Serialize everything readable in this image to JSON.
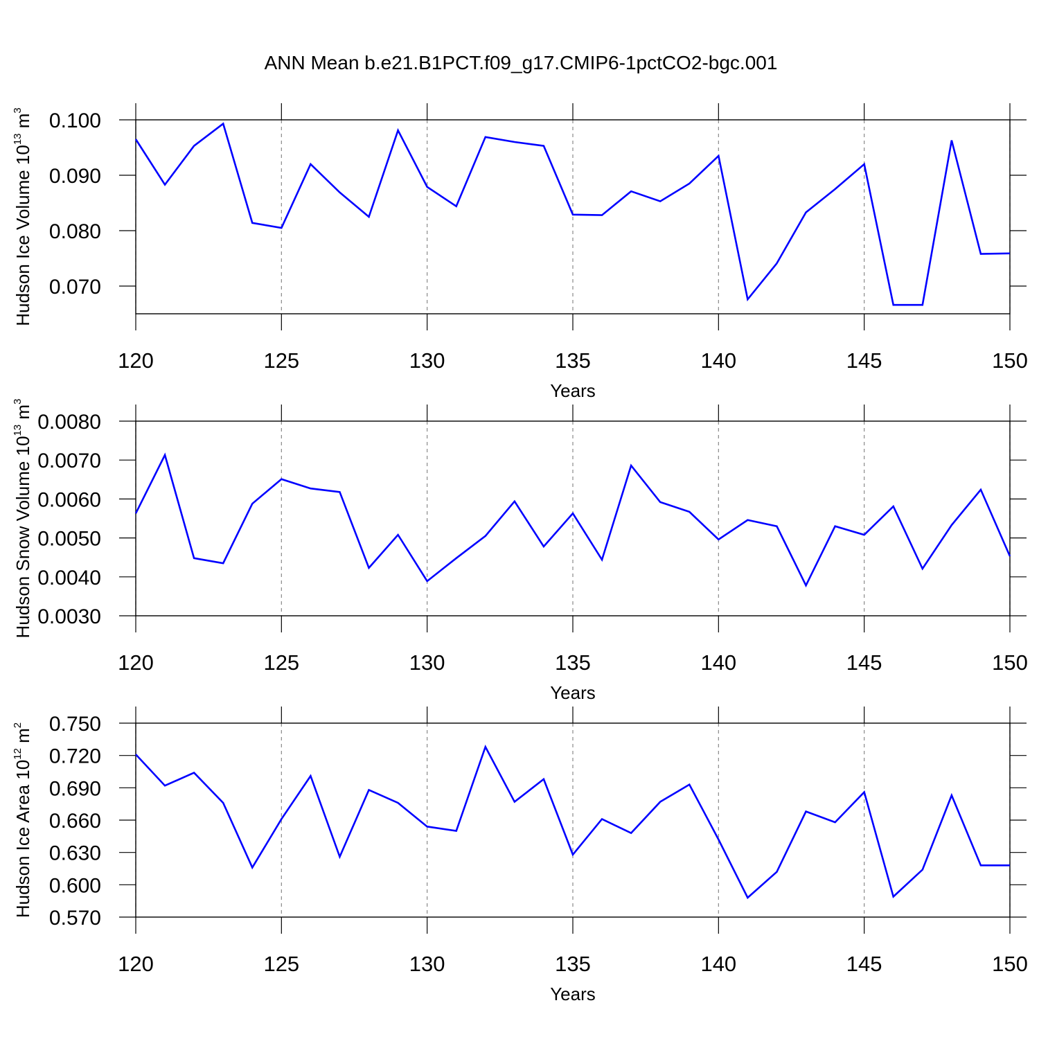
{
  "title": "ANN Mean b.e21.B1PCT.f09_g17.CMIP6-1pctCO2-bgc.001",
  "chart_data": [
    {
      "type": "line",
      "ylabel": [
        "Hudson Ice Volume 10",
        "13",
        " m",
        "3"
      ],
      "xlabel": "Years",
      "x": [
        120,
        121,
        122,
        123,
        124,
        125,
        126,
        127,
        128,
        129,
        130,
        131,
        132,
        133,
        134,
        135,
        136,
        137,
        138,
        139,
        140,
        141,
        142,
        143,
        144,
        145,
        146,
        147,
        148,
        149,
        150
      ],
      "series": [
        {
          "color": "#0000ff",
          "values": [
            0.0965,
            0.0883,
            0.0953,
            0.0993,
            0.0814,
            0.0805,
            0.092,
            0.0869,
            0.0825,
            0.0981,
            0.0879,
            0.0844,
            0.0969,
            0.096,
            0.0953,
            0.0829,
            0.0828,
            0.0871,
            0.0853,
            0.0885,
            0.0935,
            0.0676,
            0.0741,
            0.0833,
            0.0875,
            0.092,
            0.0666,
            0.0666,
            0.0963,
            0.0758,
            0.0759
          ]
        }
      ],
      "xlim": [
        120,
        150
      ],
      "xticks": [
        120,
        125,
        130,
        135,
        140,
        145,
        150
      ],
      "ylim": [
        0.065,
        0.1
      ],
      "yticks": [
        {
          "value": 0.07,
          "label": "0.070"
        },
        {
          "value": 0.08,
          "label": "0.080"
        },
        {
          "value": 0.09,
          "label": "0.090"
        },
        {
          "value": 0.1,
          "label": "0.100"
        }
      ],
      "grid": "x"
    },
    {
      "type": "line",
      "ylabel": [
        "Hudson Snow Volume 10",
        "13",
        " m",
        "3"
      ],
      "xlabel": "Years",
      "x": [
        120,
        121,
        122,
        123,
        124,
        125,
        126,
        127,
        128,
        129,
        130,
        131,
        132,
        133,
        134,
        135,
        136,
        137,
        138,
        139,
        140,
        141,
        142,
        143,
        144,
        145,
        146,
        147,
        148,
        149,
        150
      ],
      "series": [
        {
          "color": "#0000ff",
          "values": [
            0.00563,
            0.00713,
            0.00448,
            0.00435,
            0.00588,
            0.00651,
            0.00627,
            0.00618,
            0.00423,
            0.00508,
            0.00389,
            0.00448,
            0.00505,
            0.00594,
            0.00478,
            0.00563,
            0.00444,
            0.00686,
            0.00592,
            0.00567,
            0.00496,
            0.00546,
            0.0053,
            0.00378,
            0.0053,
            0.00508,
            0.00581,
            0.00421,
            0.00533,
            0.00624,
            0.00453
          ]
        }
      ],
      "xlim": [
        120,
        150
      ],
      "xticks": [
        120,
        125,
        130,
        135,
        140,
        145,
        150
      ],
      "ylim": [
        0.003,
        0.008
      ],
      "yticks": [
        {
          "value": 0.003,
          "label": "0.0030"
        },
        {
          "value": 0.004,
          "label": "0.0040"
        },
        {
          "value": 0.005,
          "label": "0.0050"
        },
        {
          "value": 0.006,
          "label": "0.0060"
        },
        {
          "value": 0.007,
          "label": "0.0070"
        },
        {
          "value": 0.008,
          "label": "0.0080"
        }
      ],
      "grid": "x"
    },
    {
      "type": "line",
      "ylabel": [
        "Hudson Ice Area 10",
        "12",
        " m",
        "2"
      ],
      "xlabel": "Years",
      "x": [
        120,
        121,
        122,
        123,
        124,
        125,
        126,
        127,
        128,
        129,
        130,
        131,
        132,
        133,
        134,
        135,
        136,
        137,
        138,
        139,
        140,
        141,
        142,
        143,
        144,
        145,
        146,
        147,
        148,
        149,
        150
      ],
      "series": [
        {
          "color": "#0000ff",
          "values": [
            0.721,
            0.692,
            0.704,
            0.676,
            0.616,
            0.661,
            0.701,
            0.626,
            0.688,
            0.676,
            0.654,
            0.65,
            0.728,
            0.677,
            0.698,
            0.628,
            0.661,
            0.648,
            0.677,
            0.693,
            0.642,
            0.588,
            0.612,
            0.668,
            0.658,
            0.686,
            0.589,
            0.614,
            0.683,
            0.618,
            0.618
          ]
        }
      ],
      "xlim": [
        120,
        150
      ],
      "xticks": [
        120,
        125,
        130,
        135,
        140,
        145,
        150
      ],
      "ylim": [
        0.57,
        0.75
      ],
      "yticks": [
        {
          "value": 0.57,
          "label": "0.570"
        },
        {
          "value": 0.6,
          "label": "0.600"
        },
        {
          "value": 0.63,
          "label": "0.630"
        },
        {
          "value": 0.66,
          "label": "0.660"
        },
        {
          "value": 0.69,
          "label": "0.690"
        },
        {
          "value": 0.72,
          "label": "0.720"
        },
        {
          "value": 0.75,
          "label": "0.750"
        }
      ],
      "grid": "x"
    }
  ]
}
